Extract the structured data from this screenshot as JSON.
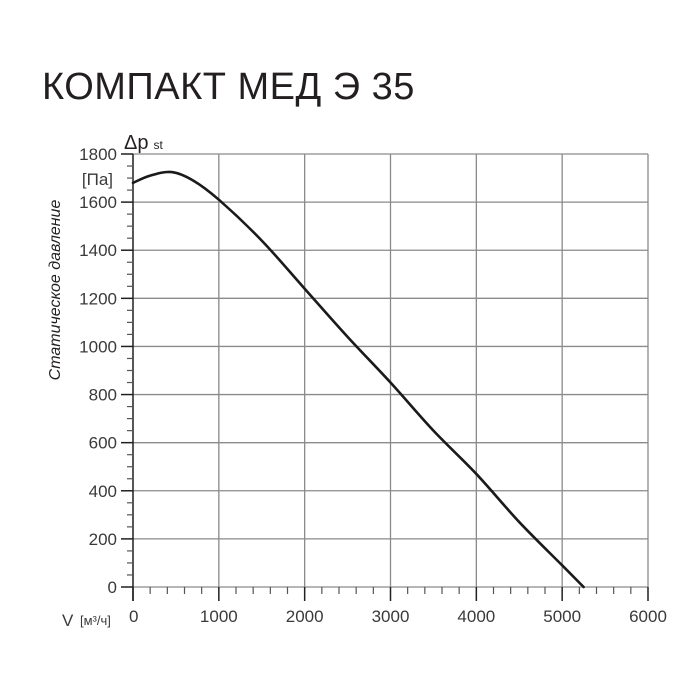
{
  "title": "КОМПАКТ МЕД Э 35",
  "chart_data": {
    "type": "line",
    "title": "КОМПАКТ МЕД Э 35",
    "xlabel": "V [м³/ч]",
    "ylabel": "Статическое давление",
    "yunit": "[Па]",
    "ysymbol": "Δp",
    "ysymbol_sub": "st",
    "xlim": [
      0,
      6000
    ],
    "ylim": [
      0,
      1800
    ],
    "xticks": [
      0,
      1000,
      2000,
      3000,
      4000,
      5000,
      6000
    ],
    "yticks": [
      0,
      200,
      400,
      600,
      800,
      1000,
      1200,
      1400,
      1600,
      1800
    ],
    "grid": true,
    "series": [
      {
        "name": "КОМПАКТ МЕД Э 35",
        "x": [
          0,
          200,
          450,
          700,
          1000,
          1500,
          2000,
          2500,
          3000,
          3500,
          4000,
          4500,
          5000,
          5250
        ],
        "y": [
          1680,
          1710,
          1725,
          1690,
          1610,
          1440,
          1240,
          1040,
          850,
          650,
          470,
          270,
          90,
          0
        ]
      }
    ]
  },
  "labels": {
    "x_var": "V",
    "x_unit": "[м³/ч]",
    "y_symbol": "Δp",
    "y_sub": "st",
    "y_unit": "[Па]",
    "y_axis_title": "Статическое давление"
  }
}
